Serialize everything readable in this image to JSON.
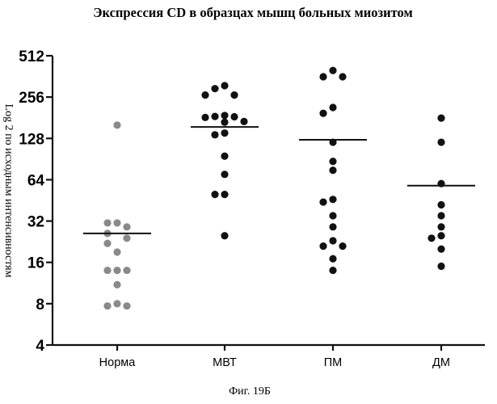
{
  "chart_data": {
    "type": "scatter",
    "title": "Экспрессия CD в образцах мышц больных миозитом",
    "ylabel": "Log 2 по исходным интенсивностям",
    "y_scale": "log2",
    "ylim": [
      4,
      512
    ],
    "y_ticks": [
      "512",
      "256",
      "128",
      "64",
      "32",
      "16",
      "8",
      "4"
    ],
    "y_tick_values": [
      512,
      256,
      128,
      64,
      32,
      16,
      8,
      4
    ],
    "categories": [
      "Норма",
      "МВТ",
      "ПМ",
      "ДМ"
    ],
    "grid": false,
    "series": [
      {
        "category": "Норма",
        "color": "#8a8a8a",
        "median": 26,
        "points": [
          160,
          31,
          31,
          29,
          26,
          24,
          22,
          19,
          14,
          14,
          14,
          11,
          8,
          7.7,
          7.7
        ]
      },
      {
        "category": "МВТ",
        "color": "#111111",
        "median": 155,
        "points": [
          310,
          295,
          265,
          265,
          188,
          185,
          184,
          182,
          170,
          168,
          140,
          136,
          95,
          70,
          50,
          50,
          25
        ]
      },
      {
        "category": "ПМ",
        "color": "#111111",
        "median": 125,
        "points": [
          400,
          360,
          360,
          215,
          195,
          120,
          87,
          75,
          46,
          44,
          35,
          29,
          23,
          21,
          21,
          17,
          14
        ]
      },
      {
        "category": "ДМ",
        "color": "#111111",
        "median": 58,
        "points": [
          180,
          120,
          60,
          42,
          35,
          29,
          25,
          24,
          20,
          15
        ]
      }
    ]
  },
  "caption": "Фиг. 19Б"
}
